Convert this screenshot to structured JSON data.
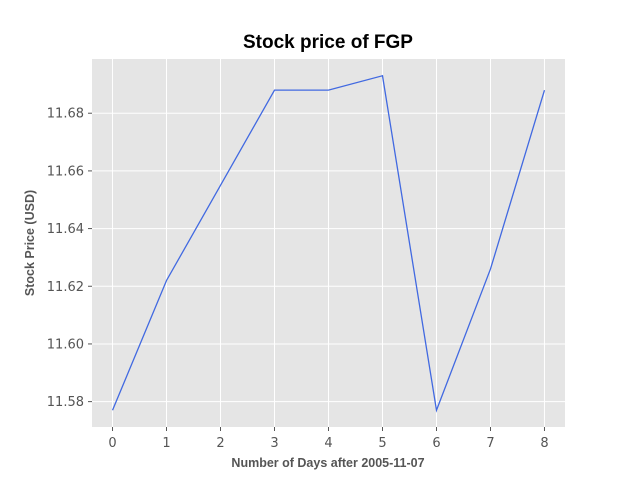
{
  "chart_data": {
    "type": "line",
    "title": "Stock price of FGP",
    "xlabel": "Number of Days after 2005-11-07",
    "ylabel": "Stock Price (USD)",
    "x": [
      0,
      1,
      2,
      3,
      4,
      5,
      6,
      7,
      8
    ],
    "series": [
      {
        "values": [
          11.577,
          11.622,
          11.655,
          11.688,
          11.688,
          11.693,
          11.577,
          11.626,
          11.688
        ]
      }
    ],
    "xticks": [
      "0",
      "1",
      "2",
      "3",
      "4",
      "5",
      "6",
      "7",
      "8"
    ],
    "yticks": [
      "11.58",
      "11.60",
      "11.62",
      "11.64",
      "11.66",
      "11.68"
    ],
    "xlim": [
      -0.38,
      8.38
    ],
    "ylim": [
      11.5712,
      11.6988
    ],
    "grid": true,
    "colors": {
      "plot_background": "#e5e5e5",
      "grid": "#ffffff",
      "line": "#4169e1",
      "text": "#555555"
    }
  }
}
